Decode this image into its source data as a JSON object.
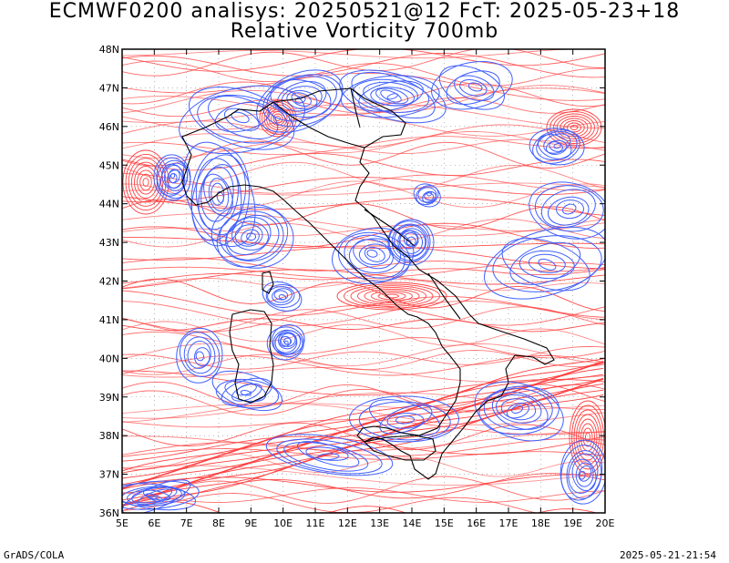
{
  "header": {
    "line1": "ECMWF0200 analisys: 20250521@12 FcT: 2025-05-23+18",
    "line2": "Relative Vorticity 700mb"
  },
  "footer": {
    "left": "GrADS/COLA",
    "right": "2025-05-21-21:54"
  },
  "map": {
    "lon_labels": [
      "5E",
      "6E",
      "7E",
      "8E",
      "9E",
      "10E",
      "11E",
      "12E",
      "13E",
      "14E",
      "15E",
      "16E",
      "17E",
      "18E",
      "19E",
      "20E"
    ],
    "lat_labels": [
      "48N",
      "47N",
      "46N",
      "45N",
      "44N",
      "43N",
      "42N",
      "41N",
      "40N",
      "39N",
      "38N",
      "37N",
      "36N"
    ],
    "lon_range": [
      5,
      20
    ],
    "lat_range": [
      36,
      48
    ],
    "colors": {
      "positive_vorticity": "#ff4040",
      "negative_vorticity": "#4060ff",
      "zero_contour": "#c060c0",
      "coastline": "#000000"
    }
  }
}
